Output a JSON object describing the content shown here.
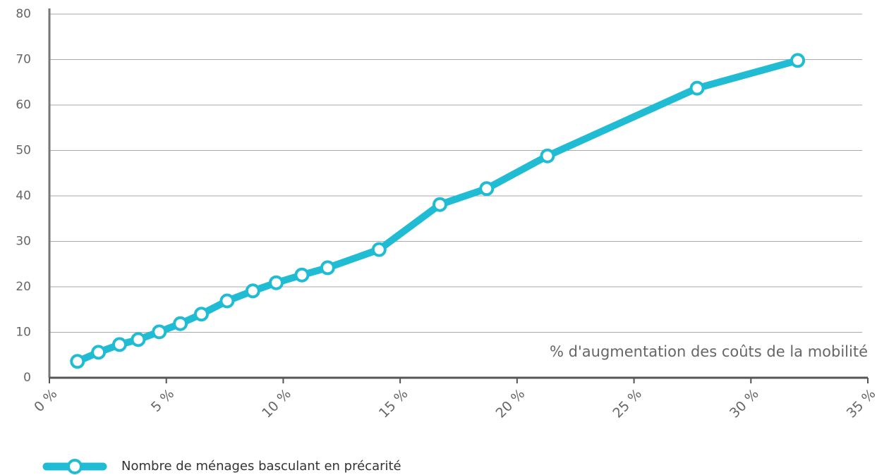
{
  "chart_data": {
    "type": "line",
    "x_label": "% d'augmentation des coûts de la mobilité",
    "x": [
      1.2,
      2.1,
      3.0,
      3.8,
      4.7,
      5.6,
      6.5,
      7.6,
      8.7,
      9.7,
      10.8,
      11.9,
      14.1,
      16.7,
      18.7,
      21.3,
      27.7,
      32.0
    ],
    "series": [
      {
        "name": "Nombre de ménages basculant en précarité",
        "color": "#1fbcd4",
        "values": [
          3.6,
          5.6,
          7.3,
          8.4,
          10.1,
          11.9,
          14.0,
          16.9,
          19.1,
          20.9,
          22.6,
          24.2,
          28.2,
          38.1,
          41.6,
          48.8,
          63.7,
          69.8
        ]
      }
    ],
    "xlim": [
      0,
      35
    ],
    "xticks": [
      {
        "value": 0,
        "label": "0 %"
      },
      {
        "value": 5,
        "label": "5 %"
      },
      {
        "value": 10,
        "label": "10 %"
      },
      {
        "value": 15,
        "label": "15 %"
      },
      {
        "value": 20,
        "label": "20 %"
      },
      {
        "value": 25,
        "label": "25 %"
      },
      {
        "value": 30,
        "label": "30 %"
      },
      {
        "value": 35,
        "label": "35 %"
      }
    ],
    "ylim": [
      0,
      80
    ],
    "yticks": [
      0,
      10,
      20,
      30,
      40,
      50,
      60,
      70,
      80
    ],
    "grid": true
  }
}
